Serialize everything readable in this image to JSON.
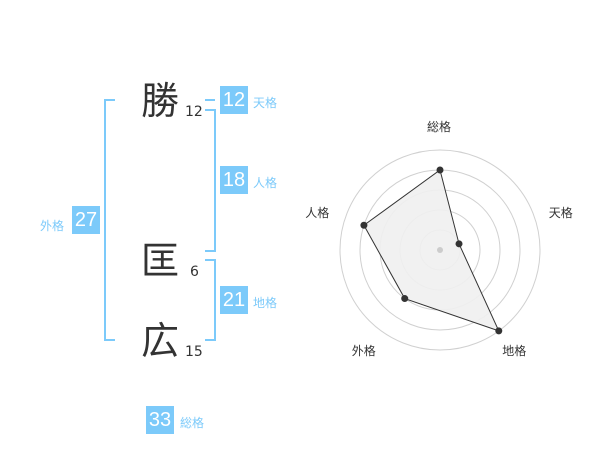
{
  "characters": [
    {
      "char": "勝",
      "strokes": "12"
    },
    {
      "char": "匡",
      "strokes": "6"
    },
    {
      "char": "広",
      "strokes": "15"
    }
  ],
  "scores": {
    "tenkaku": {
      "label": "天格",
      "value": "12"
    },
    "jinkaku": {
      "label": "人格",
      "value": "18"
    },
    "chikaku": {
      "label": "地格",
      "value": "21"
    },
    "gaikaku": {
      "label": "外格",
      "value": "27"
    },
    "soukaku": {
      "label": "総格",
      "value": "33"
    }
  },
  "colors": {
    "accent": "#7ccafa",
    "fill": "#f0f0f0",
    "line": "#333333"
  },
  "chart_data": {
    "type": "radar",
    "categories": [
      "総格",
      "天格",
      "地格",
      "外格",
      "人格"
    ],
    "values": [
      4,
      1,
      5,
      3,
      4
    ],
    "rlim": [
      0,
      5
    ],
    "grid": true
  }
}
